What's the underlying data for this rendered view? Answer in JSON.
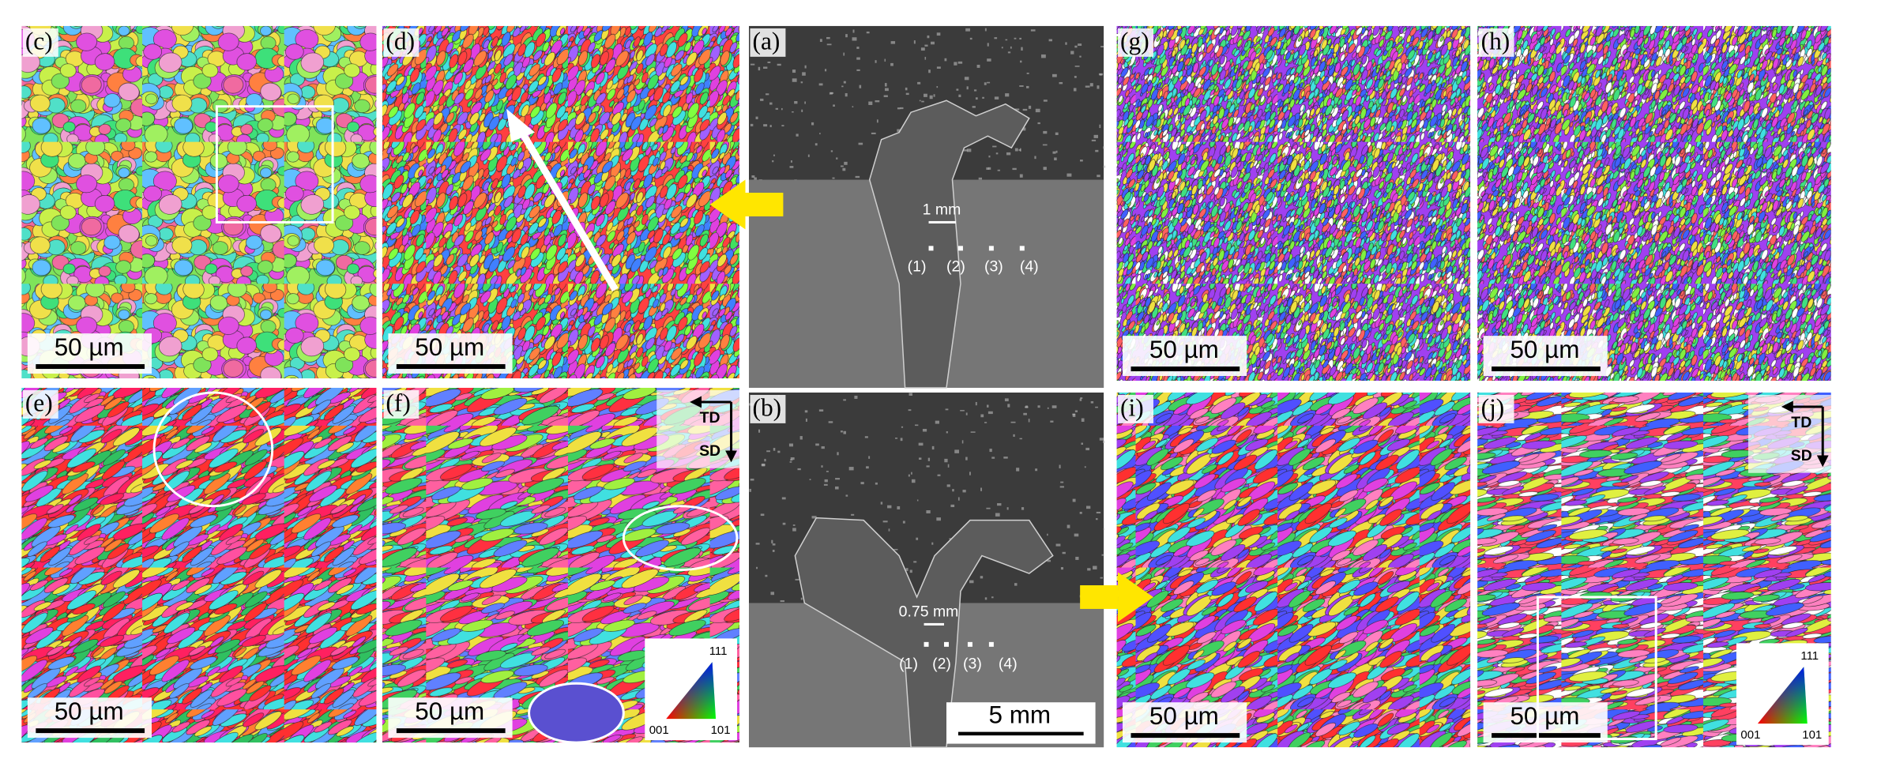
{
  "maps": [
    {
      "label": "(c)",
      "scale_bar": "50 µm"
    },
    {
      "label": "(d)",
      "scale_bar": "50 µm"
    },
    {
      "label": "(g)",
      "scale_bar": "50 µm"
    },
    {
      "label": "(h)",
      "scale_bar": "50 µm"
    },
    {
      "label": "(e)",
      "scale_bar": "50 µm"
    },
    {
      "label": "(f)",
      "scale_bar": "50 µm"
    },
    {
      "label": "(i)",
      "scale_bar": "50 µm"
    },
    {
      "label": "(j)",
      "scale_bar": "50 µm"
    }
  ],
  "panel_a": {
    "label": "(a)",
    "scale_bar": "1 mm",
    "points": [
      "(1)",
      "(2)",
      "(3)",
      "(4)"
    ]
  },
  "panel_b": {
    "label": "(b)",
    "scale_bar": "0.75 mm",
    "points": [
      "(1)",
      "(2)",
      "(3)",
      "(4)"
    ],
    "overall_scale": "5 mm"
  },
  "directions": {
    "td": "TD",
    "sd": "SD"
  },
  "ipf_key": {
    "top": "111",
    "left": "001",
    "right": "101"
  }
}
